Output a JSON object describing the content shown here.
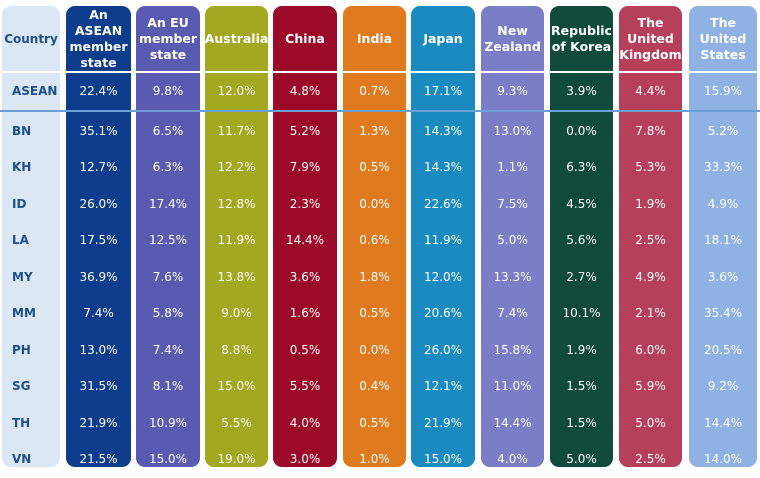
{
  "chart_data": {
    "type": "table",
    "title": "",
    "header_first": "Country",
    "columns": [
      {
        "label": "An ASEAN member state",
        "color": "#0d3d8c"
      },
      {
        "label": "An EU member state",
        "color": "#5a5bb0"
      },
      {
        "label": "Australia",
        "color": "#a3a821"
      },
      {
        "label": "China",
        "color": "#9c0a2a"
      },
      {
        "label": "India",
        "color": "#e07a1f"
      },
      {
        "label": "Japan",
        "color": "#1a8bc0"
      },
      {
        "label": "New Zealand",
        "color": "#7b7dc6"
      },
      {
        "label": "Republic of Korea",
        "color": "#0f4a3c"
      },
      {
        "label": "The United Kingdom",
        "color": "#b6405c"
      },
      {
        "label": "The United States",
        "color": "#8fb1e3"
      }
    ],
    "rows": [
      {
        "country": "ASEAN",
        "values": [
          "22.4%",
          "9.8%",
          "12.0%",
          "4.8%",
          "0.7%",
          "17.1%",
          "9.3%",
          "3.9%",
          "4.4%",
          "15.9%"
        ]
      },
      {
        "country": "BN",
        "values": [
          "35.1%",
          "6.5%",
          "11.7%",
          "5.2%",
          "1.3%",
          "14.3%",
          "13.0%",
          "0.0%",
          "7.8%",
          "5.2%"
        ]
      },
      {
        "country": "KH",
        "values": [
          "12.7%",
          "6.3%",
          "12.2%",
          "7.9%",
          "0.5%",
          "14.3%",
          "1.1%",
          "6.3%",
          "5.3%",
          "33.3%"
        ]
      },
      {
        "country": "ID",
        "values": [
          "26.0%",
          "17.4%",
          "12.8%",
          "2.3%",
          "0.0%",
          "22.6%",
          "7.5%",
          "4.5%",
          "1.9%",
          "4.9%"
        ]
      },
      {
        "country": "LA",
        "values": [
          "17.5%",
          "12.5%",
          "11.9%",
          "14.4%",
          "0.6%",
          "11.9%",
          "5.0%",
          "5.6%",
          "2.5%",
          "18.1%"
        ]
      },
      {
        "country": "MY",
        "values": [
          "36.9%",
          "7.6%",
          "13.8%",
          "3.6%",
          "1.8%",
          "12.0%",
          "13.3%",
          "2.7%",
          "4.9%",
          "3.6%"
        ]
      },
      {
        "country": "MM",
        "values": [
          "7.4%",
          "5.8%",
          "9.0%",
          "1.6%",
          "0.5%",
          "20.6%",
          "7.4%",
          "10.1%",
          "2.1%",
          "35.4%"
        ]
      },
      {
        "country": "PH",
        "values": [
          "13.0%",
          "7.4%",
          "8.8%",
          "0.5%",
          "0.0%",
          "26.0%",
          "15.8%",
          "1.9%",
          "6.0%",
          "20.5%"
        ]
      },
      {
        "country": "SG",
        "values": [
          "31.5%",
          "8.1%",
          "15.0%",
          "5.5%",
          "0.4%",
          "12.1%",
          "11.0%",
          "1.5%",
          "5.9%",
          "9.2%"
        ]
      },
      {
        "country": "TH",
        "values": [
          "21.9%",
          "10.9%",
          "5.5%",
          "4.0%",
          "0.5%",
          "21.9%",
          "14.4%",
          "1.5%",
          "5.0%",
          "14.4%"
        ]
      },
      {
        "country": "VN",
        "values": [
          "21.5%",
          "15.0%",
          "19.0%",
          "3.0%",
          "1.0%",
          "15.0%",
          "4.0%",
          "5.0%",
          "2.5%",
          "14.0%"
        ]
      }
    ],
    "first_column_bg": "#dce7f5",
    "country_text_color": "#1c4f8c"
  }
}
